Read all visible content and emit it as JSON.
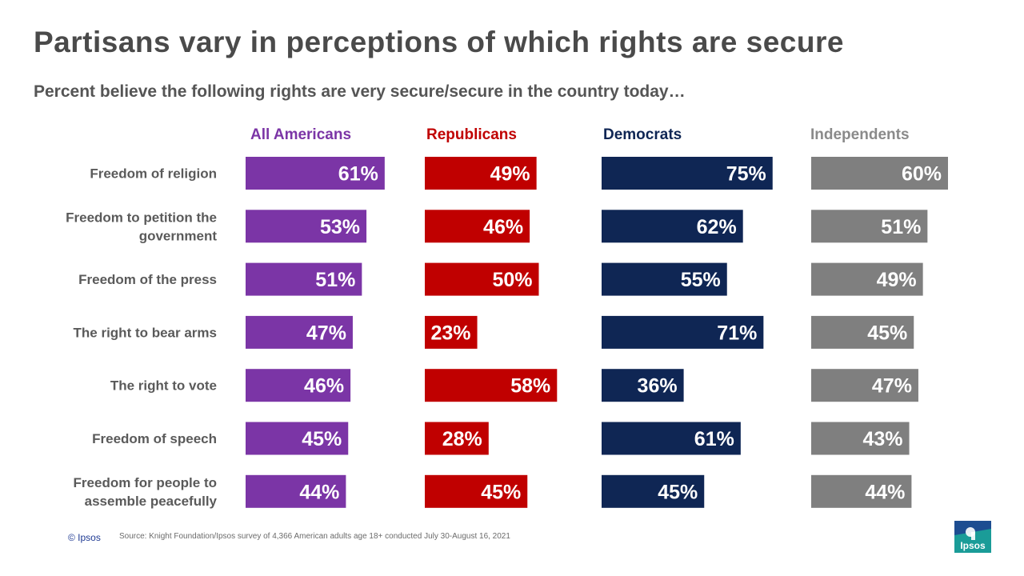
{
  "title": "Partisans vary in perceptions of which rights are secure",
  "subtitle": "Percent believe the following rights are very secure/secure in the country today…",
  "footer": {
    "copyright": "© Ipsos",
    "source": "Source: Knight Foundation/Ipsos survey of 4,366 American adults age 18+ conducted July 30-August 16, 2021"
  },
  "logo_text": "Ipsos",
  "colors": {
    "all_americans": "#7b35a6",
    "republicans": "#c00000",
    "democrats": "#0f2654",
    "independents": "#7f7f7f",
    "logo": "#1a9c98"
  },
  "chart_data": {
    "type": "bar",
    "orientation": "horizontal",
    "categories": [
      [
        "Freedom of religion"
      ],
      [
        "Freedom to petition the",
        "government"
      ],
      [
        "Freedom of the press"
      ],
      [
        "The right to bear arms"
      ],
      [
        "The right to vote"
      ],
      [
        "Freedom of speech"
      ],
      [
        "Freedom for people to",
        "assemble peacefully"
      ]
    ],
    "series": [
      {
        "name": "All Americans",
        "color_key": "all_americans",
        "values": [
          61,
          53,
          51,
          47,
          46,
          45,
          44
        ]
      },
      {
        "name": "Republicans",
        "color_key": "republicans",
        "values": [
          49,
          46,
          50,
          23,
          58,
          28,
          45
        ]
      },
      {
        "name": "Democrats",
        "color_key": "democrats",
        "values": [
          75,
          62,
          55,
          71,
          36,
          61,
          45
        ]
      },
      {
        "name": "Independents",
        "color_key": "independents",
        "values": [
          60,
          51,
          49,
          45,
          47,
          43,
          44
        ]
      }
    ],
    "value_suffix": "%",
    "unit": "percent"
  }
}
